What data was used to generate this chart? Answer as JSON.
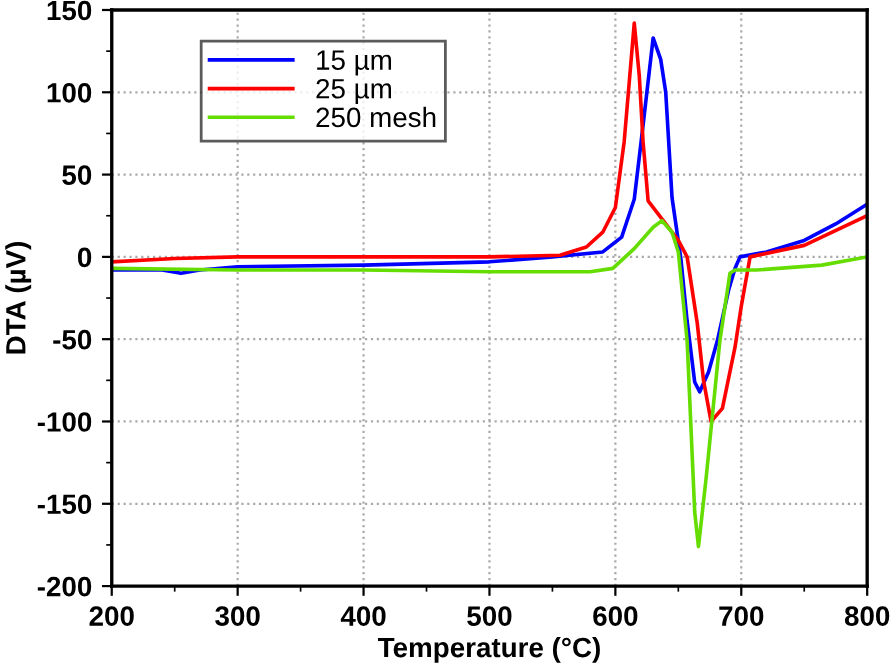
{
  "chart_data": {
    "type": "line",
    "xlabel": "Temperature (°C)",
    "ylabel": "DTA (µV)",
    "xlim": [
      200,
      800
    ],
    "ylim": [
      -200,
      150
    ],
    "xticks": [
      200,
      300,
      400,
      500,
      600,
      700,
      800
    ],
    "yticks": [
      -200,
      -150,
      -100,
      -50,
      0,
      50,
      100,
      150
    ],
    "grid": true,
    "legend": "top left",
    "line_style": "solid",
    "marker": "none",
    "series": [
      {
        "name": "15 µm",
        "color": "#0000ff",
        "x": [
          200,
          240,
          255,
          270,
          300,
          400,
          500,
          550,
          590,
          605,
          615,
          622,
          630,
          636,
          640,
          645,
          652,
          657,
          663,
          667,
          674,
          681,
          690,
          695,
          699,
          720,
          750,
          775,
          800
        ],
        "values": [
          -8,
          -8,
          -10,
          -8,
          -6,
          -5,
          -3,
          0,
          3,
          12,
          35,
          80,
          133,
          120,
          100,
          36,
          -1,
          -39,
          -76,
          -82,
          -70,
          -51,
          -20,
          -7,
          0,
          3,
          10,
          20,
          32
        ]
      },
      {
        "name": "25 µm",
        "color": "#ff0000",
        "x": [
          200,
          250,
          300,
          400,
          500,
          556,
          577,
          590,
          600,
          607,
          612,
          615,
          619,
          622,
          626,
          640,
          650,
          657,
          665,
          670,
          676,
          685,
          695,
          700,
          707,
          750,
          800
        ],
        "values": [
          -3,
          -1,
          0,
          0,
          0,
          1,
          6,
          15,
          30,
          70,
          115,
          142,
          110,
          70,
          34,
          20,
          10,
          0,
          -40,
          -75,
          -100,
          -92,
          -55,
          -30,
          0,
          7,
          25
        ]
      },
      {
        "name": "250 mesh",
        "color": "#66dd00",
        "x": [
          200,
          300,
          400,
          500,
          580,
          598,
          615,
          630,
          637,
          645,
          650,
          657,
          663,
          666,
          672,
          683,
          691,
          695,
          712,
          764,
          800
        ],
        "values": [
          -7,
          -8,
          -8,
          -9,
          -9,
          -7,
          5,
          18,
          22,
          15,
          3,
          -51,
          -155,
          -176,
          -135,
          -51,
          -10,
          -8,
          -8,
          -5,
          0
        ]
      }
    ]
  }
}
